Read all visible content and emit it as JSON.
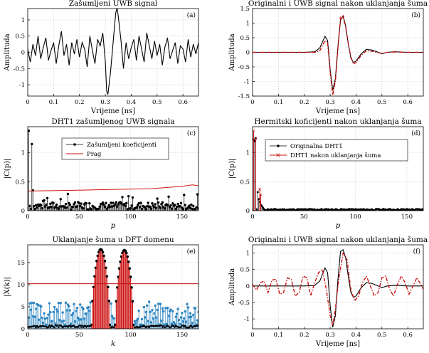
{
  "colors": {
    "black": "#000000",
    "red": "#cc1111",
    "blue": "#2e86c1",
    "grid": "#c9c9c9"
  },
  "chart_data": [
    {
      "id": "a",
      "type": "line",
      "title": "Zašumljeni UWB signal",
      "panel_label": "(a)",
      "xlabel": "Vrijeme [ns]",
      "ylabel": "Amplituda",
      "xlim": [
        0,
        0.66
      ],
      "ylim": [
        -1.35,
        1.35
      ],
      "xticks": [
        0,
        0.1,
        0.2,
        0.3,
        0.4,
        0.5,
        0.6
      ],
      "xtick_labels": [
        "0",
        "0.1",
        "0.2",
        "0.3",
        "0.4",
        "0.5",
        "0.6"
      ],
      "yticks": [
        -1,
        -0.5,
        0,
        0.5,
        1
      ],
      "ytick_labels": [
        "-1",
        "-0.5",
        "0",
        "0.5",
        "1"
      ],
      "series": [
        {
          "name": "noisy",
          "color": "#000000",
          "style": "solid",
          "x": [
            0,
            0.01,
            0.02,
            0.03,
            0.04,
            0.05,
            0.06,
            0.07,
            0.08,
            0.09,
            0.1,
            0.11,
            0.12,
            0.13,
            0.14,
            0.15,
            0.16,
            0.17,
            0.18,
            0.19,
            0.2,
            0.21,
            0.22,
            0.23,
            0.24,
            0.25,
            0.26,
            0.27,
            0.28,
            0.29,
            0.3,
            0.305,
            0.31,
            0.32,
            0.33,
            0.34,
            0.345,
            0.35,
            0.36,
            0.37,
            0.38,
            0.39,
            0.4,
            0.41,
            0.42,
            0.43,
            0.44,
            0.45,
            0.46,
            0.47,
            0.48,
            0.49,
            0.5,
            0.51,
            0.52,
            0.53,
            0.54,
            0.55,
            0.56,
            0.57,
            0.58,
            0.59,
            0.6,
            0.61,
            0.62,
            0.63,
            0.64,
            0.65,
            0.66
          ],
          "y": [
            0.1,
            -0.3,
            0.25,
            -0.1,
            0.5,
            -0.2,
            0.15,
            0.45,
            -0.25,
            0.05,
            0.3,
            -0.35,
            0.2,
            0.65,
            -0.1,
            0.25,
            -0.4,
            0.3,
            -0.05,
            0.4,
            -0.15,
            0.3,
            0.1,
            -0.45,
            0.5,
            0.05,
            -0.35,
            0.4,
            0.2,
            0.6,
            -0.3,
            -1.2,
            -1.3,
            -0.6,
            0.3,
            1.2,
            1.4,
            1.1,
            0.4,
            -0.5,
            0.3,
            -0.2,
            0.15,
            0.4,
            -0.25,
            0.5,
            0.1,
            -0.3,
            0.6,
            0.2,
            -0.2,
            0.35,
            -0.1,
            0.25,
            -0.4,
            0.15,
            0.45,
            -0.2,
            0.05,
            0.3,
            -0.35,
            0.2,
            0.1,
            -0.3,
            0.4,
            -0.15,
            0.25,
            -0.05,
            0.3
          ]
        }
      ]
    },
    {
      "id": "b",
      "type": "line",
      "title": "Originalni i UWB signal nakon uklanjanja šuma",
      "panel_label": "(b)",
      "xlabel": "Vrijeme [ns]",
      "ylabel": "Amplituda",
      "xlim": [
        0,
        0.66
      ],
      "ylim": [
        -1.5,
        1.5
      ],
      "xticks": [
        0,
        0.1,
        0.2,
        0.3,
        0.4,
        0.5,
        0.6
      ],
      "xtick_labels": [
        "0",
        "0.1",
        "0.2",
        "0.3",
        "0.4",
        "0.5",
        "0.6"
      ],
      "yticks": [
        -1.5,
        -1,
        -0.5,
        0,
        0.5,
        1,
        1.5
      ],
      "ytick_labels": [
        "-1.5",
        "-1",
        "-0.5",
        "0",
        "0.5",
        "1",
        "1.5"
      ],
      "series": [
        {
          "name": "original",
          "color": "#000000",
          "style": "solid",
          "x": [
            0,
            0.2,
            0.24,
            0.26,
            0.28,
            0.29,
            0.3,
            0.31,
            0.32,
            0.33,
            0.34,
            0.35,
            0.36,
            0.37,
            0.38,
            0.39,
            0.4,
            0.42,
            0.44,
            0.46,
            0.48,
            0.5,
            0.52,
            0.55,
            0.6,
            0.66
          ],
          "y": [
            0,
            0,
            0.02,
            0.15,
            0.55,
            0.4,
            -0.6,
            -1.3,
            -0.9,
            0.2,
            1.1,
            1.25,
            0.9,
            0.3,
            -0.2,
            -0.35,
            -0.3,
            -0.05,
            0.1,
            0.08,
            0.02,
            -0.05,
            0.0,
            0.02,
            0,
            0
          ]
        },
        {
          "name": "denoised",
          "color": "#cc1111",
          "style": "dashdot",
          "x": [
            0,
            0.2,
            0.24,
            0.26,
            0.28,
            0.29,
            0.3,
            0.31,
            0.32,
            0.33,
            0.34,
            0.35,
            0.36,
            0.37,
            0.38,
            0.39,
            0.4,
            0.42,
            0.44,
            0.46,
            0.48,
            0.5,
            0.52,
            0.55,
            0.6,
            0.66
          ],
          "y": [
            0,
            0,
            0.0,
            0.05,
            0.4,
            0.3,
            -0.7,
            -1.45,
            -1.0,
            0.15,
            1.15,
            1.2,
            0.85,
            0.3,
            -0.15,
            -0.4,
            -0.35,
            -0.1,
            0.05,
            0.04,
            0.0,
            -0.04,
            0.0,
            0.01,
            0,
            0
          ]
        }
      ]
    },
    {
      "id": "c",
      "type": "stem",
      "title": "DHT1 zašumljenog UWB signala",
      "panel_label": "(c)",
      "xlabel": "p",
      "ylabel": "|C(p)|",
      "xlim": [
        0,
        166
      ],
      "ylim": [
        0,
        1.45
      ],
      "xticks": [
        0,
        50,
        100,
        150
      ],
      "xtick_labels": [
        "0",
        "50",
        "100",
        "150"
      ],
      "yticks": [
        0,
        0.5,
        1
      ],
      "ytick_labels": [
        "0",
        "0.5",
        "1"
      ],
      "legend": [
        "Zašumljeni koeficijenti",
        "Prag"
      ],
      "stems": {
        "color": "#000000",
        "count": 166,
        "big": [
          [
            1,
            1.38
          ],
          [
            4,
            1.15
          ],
          [
            5,
            0.35
          ]
        ],
        "base_level": 0.06,
        "variation": 0.13
      },
      "threshold": {
        "color": "#cc1111",
        "x": [
          0,
          40,
          80,
          120,
          150,
          160,
          166
        ],
        "y": [
          0.34,
          0.35,
          0.365,
          0.38,
          0.42,
          0.445,
          0.43
        ]
      }
    },
    {
      "id": "d",
      "type": "stem",
      "title": "Hermitski koficijenti nakon uklanjanja šuma",
      "panel_label": "(d)",
      "xlabel": "p",
      "ylabel": "|C(p)|",
      "xlim": [
        0,
        166
      ],
      "ylim": [
        0,
        1.45
      ],
      "xticks": [
        0,
        50,
        100,
        150
      ],
      "xtick_labels": [
        "0",
        "50",
        "100",
        "150"
      ],
      "yticks": [
        0,
        0.5,
        1
      ],
      "ytick_labels": [
        "0",
        "0.5",
        "1"
      ],
      "legend": [
        "Originalna DHT1",
        "DHT1 nakon uklanjanja šuma"
      ],
      "orig_stems": {
        "color": "#000000",
        "big": [
          [
            1,
            1.23
          ],
          [
            2,
            1.2
          ],
          [
            3,
            1.25
          ],
          [
            5,
            0.32
          ],
          [
            6,
            0.2
          ],
          [
            7,
            0.15
          ],
          [
            8,
            0.1
          ],
          [
            9,
            0.08
          ],
          [
            10,
            0.05
          ]
        ]
      },
      "den_stems": {
        "color": "#cc1111",
        "big": [
          [
            1,
            1.38
          ],
          [
            3,
            1.25
          ],
          [
            7,
            0.38
          ],
          [
            8,
            0.28
          ]
        ]
      }
    },
    {
      "id": "e",
      "type": "stem",
      "title": "Uklanjanje šuma u DFT domenu",
      "panel_label": "(e)",
      "xlabel": "k",
      "ylabel": "|X(k)|",
      "xlim": [
        0,
        166
      ],
      "ylim": [
        0,
        19
      ],
      "xticks": [
        0,
        50,
        100,
        150
      ],
      "xtick_labels": [
        "0",
        "50",
        "100",
        "150"
      ],
      "yticks": [
        0,
        5,
        10,
        15
      ],
      "ytick_labels": [
        "0",
        "5",
        "10",
        "15"
      ],
      "threshold_level": 10.2,
      "peaks": {
        "centers": [
          71,
          94
        ],
        "heights": [
          18,
          17.8
        ]
      }
    },
    {
      "id": "f",
      "type": "line",
      "title": "Originalni i UWB signal nakon uklanjanja šuma",
      "panel_label": "(f)",
      "xlabel": "Vrijeme [ns]",
      "ylabel": "Amplituda",
      "xlim": [
        0,
        0.66
      ],
      "ylim": [
        -1.3,
        1.25
      ],
      "xticks": [
        0,
        0.1,
        0.2,
        0.3,
        0.4,
        0.5,
        0.6
      ],
      "xtick_labels": [
        "0",
        "0.1",
        "0.2",
        "0.3",
        "0.4",
        "0.5",
        "0.6"
      ],
      "yticks": [
        -1,
        -0.5,
        0,
        0.5,
        1
      ],
      "ytick_labels": [
        "-1",
        "-0.5",
        "0",
        "0.5",
        "1"
      ],
      "series": [
        {
          "name": "original",
          "color": "#000000",
          "style": "solid",
          "x": [
            0,
            0.2,
            0.24,
            0.26,
            0.28,
            0.29,
            0.3,
            0.31,
            0.32,
            0.33,
            0.34,
            0.35,
            0.36,
            0.37,
            0.38,
            0.39,
            0.4,
            0.42,
            0.44,
            0.46,
            0.48,
            0.5,
            0.52,
            0.55,
            0.6,
            0.66
          ],
          "y": [
            0,
            0,
            0.02,
            0.15,
            0.55,
            0.4,
            -0.6,
            -1.25,
            -0.9,
            0.2,
            1.05,
            1.1,
            0.85,
            0.3,
            -0.2,
            -0.35,
            -0.3,
            -0.05,
            0.1,
            0.08,
            0.02,
            -0.05,
            0.0,
            0.02,
            0,
            0
          ]
        },
        {
          "name": "denoised",
          "color": "#cc1111",
          "style": "dashdot",
          "x": [
            0,
            0.015,
            0.03,
            0.045,
            0.06,
            0.075,
            0.09,
            0.105,
            0.12,
            0.135,
            0.15,
            0.165,
            0.18,
            0.195,
            0.21,
            0.225,
            0.24,
            0.255,
            0.27,
            0.285,
            0.3,
            0.31,
            0.32,
            0.335,
            0.35,
            0.365,
            0.38,
            0.395,
            0.41,
            0.425,
            0.44,
            0.455,
            0.47,
            0.485,
            0.5,
            0.515,
            0.53,
            0.545,
            0.56,
            0.575,
            0.59,
            0.605,
            0.62,
            0.635,
            0.65,
            0.66
          ],
          "y": [
            0.05,
            -0.12,
            0.1,
            0.15,
            -0.2,
            0.18,
            0.2,
            -0.25,
            -0.2,
            0.25,
            0.2,
            -0.3,
            -0.2,
            0.3,
            0.25,
            -0.3,
            0.1,
            0.4,
            0.5,
            -0.1,
            -0.9,
            -1.2,
            -0.7,
            0.3,
            1.0,
            0.8,
            -0.1,
            -0.45,
            -0.3,
            0.1,
            0.3,
            0.0,
            -0.3,
            -0.2,
            0.25,
            0.3,
            -0.1,
            -0.3,
            0.05,
            0.3,
            0.1,
            -0.25,
            0.0,
            0.25,
            0.05,
            -0.1
          ]
        }
      ]
    }
  ]
}
